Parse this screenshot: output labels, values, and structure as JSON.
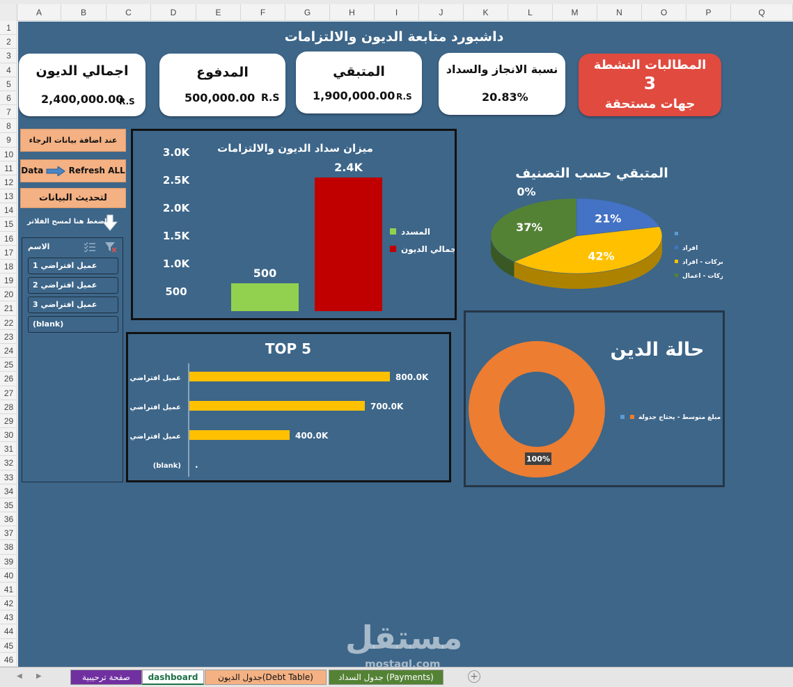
{
  "columns": [
    "A",
    "B",
    "C",
    "D",
    "E",
    "F",
    "G",
    "H",
    "I",
    "J",
    "K",
    "L",
    "M",
    "N",
    "O",
    "P",
    "Q"
  ],
  "rows": [
    "1",
    "2",
    "3",
    "4",
    "5",
    "6",
    "7",
    "8",
    "9",
    "10",
    "11",
    "12",
    "13",
    "14",
    "15",
    "16",
    "17",
    "18",
    "19",
    "20",
    "21",
    "22",
    "23",
    "24",
    "25",
    "26",
    "27",
    "28",
    "29",
    "30",
    "31",
    "32",
    "33",
    "34",
    "35",
    "36",
    "37",
    "38",
    "39",
    "40",
    "41",
    "42",
    "43",
    "44",
    "45",
    "46"
  ],
  "title": "داشبورد متابعة الديون والالتزامات",
  "kpis": {
    "total_debt": {
      "label": "اجمالي الديون",
      "value": "2,400,000.00",
      "unit": "R.S"
    },
    "paid": {
      "label": "المدفوع",
      "value": "500,000.00",
      "unit": "R.S"
    },
    "remaining": {
      "label": "المتبقي",
      "value": "1,900,000.00",
      "unit": "R.S"
    },
    "completion": {
      "label": "نسبة الانجاز والسداد",
      "value": "20.83%"
    },
    "active_claims": {
      "label": "المطالبات النشطة",
      "value": "3",
      "sub": "جهات مستحقة"
    }
  },
  "sidebar": {
    "add_data_note": "عند اضافة بيانات الرجاء",
    "refresh_prefix": "Data",
    "refresh_label": "Refresh ALL",
    "update_label": "لتحديث البيانات",
    "clear_filter_note": "اضغط هنا لمسح الفلاتر"
  },
  "slicer": {
    "header": "الاسم",
    "items": [
      "عميل افتراضي 1",
      "عميل افتراضي 2",
      "عميل افتراضي 3",
      "(blank)"
    ]
  },
  "bar_chart": {
    "chart_data": {
      "type": "bar",
      "title": "ميزان سداد الديون والالتزامات",
      "categories": [
        "المسدد",
        "اجمالي الديون"
      ],
      "values": [
        500,
        2400
      ],
      "data_labels": [
        "500",
        "2.4K"
      ],
      "y_ticks": [
        "500",
        "1.0K",
        "1.5K",
        "2.0K",
        "2.5K",
        "3.0K"
      ],
      "ylim": [
        0,
        3000
      ],
      "colors": [
        "#92d050",
        "#c00000"
      ],
      "legend": "right"
    }
  },
  "top5_chart": {
    "chart_data": {
      "type": "bar",
      "orientation": "horizontal",
      "title": "TOP 5",
      "categories": [
        "عميل افتراضي 2",
        "عميل افتراضي 3",
        "عميل افتراضي 1",
        "(blank)"
      ],
      "values": [
        800000,
        700000,
        400000,
        0
      ],
      "data_labels": [
        "800.0K",
        "700.0K",
        "400.0K",
        "."
      ],
      "xlim": [
        0,
        1000000
      ],
      "color": "#ffc000"
    }
  },
  "pie_chart": {
    "chart_data": {
      "type": "pie",
      "title": "المتبقي حسب التصنيف",
      "slices": [
        {
          "name": "",
          "value": 0,
          "label": "0%",
          "color": "#5b9bd5"
        },
        {
          "name": "افراد",
          "value": 21,
          "label": "21%",
          "color": "#4472c4"
        },
        {
          "name": "شركات - افراد",
          "value": 42,
          "label": "42%",
          "color": "#ffc000"
        },
        {
          "name": "شركات - اعمال",
          "value": 37,
          "label": "37%",
          "color": "#548235"
        }
      ],
      "legend": "right"
    }
  },
  "donut_chart": {
    "chart_data": {
      "type": "pie",
      "style": "donut",
      "title": "حالة الدين",
      "slices": [
        {
          "name": "مبلغ متوسط - يحتاج جدولة",
          "value": 100,
          "label": "100%",
          "color": "#ed7d31"
        }
      ],
      "legend": "right"
    }
  },
  "tabs": [
    {
      "label": "صفحة ترحيبية",
      "color": "#7030a0",
      "text_color": "#ffffff"
    },
    {
      "label": "dashboard",
      "color": "#ffffff",
      "text_color": "#1e7145"
    },
    {
      "label": "جدول الديون(Debt Table)",
      "color": "#f4b183",
      "text_color": "#111111"
    },
    {
      "label": "جدول السداد (Payments)",
      "color": "#548235",
      "text_color": "#ffffff"
    }
  ],
  "watermark": {
    "main": "مستقل",
    "sub": "mostaql.com"
  }
}
